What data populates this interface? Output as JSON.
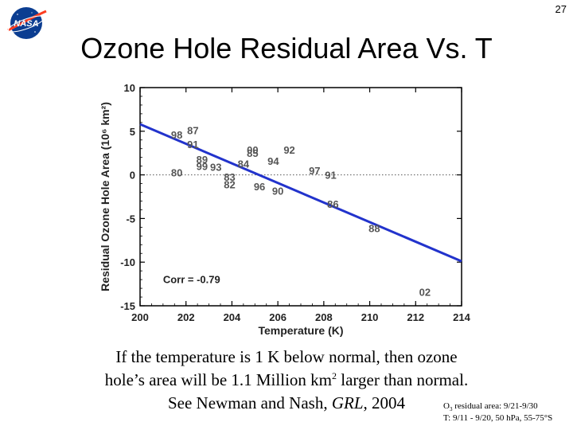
{
  "slide": {
    "number": "27",
    "logo_text": "NASA",
    "title": "Ozone Hole Residual Area Vs. T",
    "caption": {
      "line1": "If the temperature is 1 K below normal, then ozone",
      "line2_pre": "hole’s area will be 1.1 Million km",
      "line2_sup": "2",
      "line2_post": " larger than normal.",
      "line3_pre": "See Newman and Nash, ",
      "line3_italic": "GRL",
      "line3_post": ", 2004"
    },
    "note": {
      "line1_pre": "O",
      "line1_sub": "3",
      "line1_post": " residual area: 9/21-9/30",
      "line2": "T: 9/11 - 9/20, 50 hPa, 55-75°S"
    }
  },
  "colors": {
    "fit_line": "#2233cc",
    "points": "#555555",
    "axis": "#000000"
  },
  "chart_data": {
    "type": "scatter",
    "xlabel": "Temperature (K)",
    "ylabel": "Residual Ozone Hole Area (10⁶ km²)",
    "xlim": [
      200,
      214
    ],
    "ylim": [
      -15,
      10
    ],
    "xticks": [
      200,
      202,
      204,
      206,
      208,
      210,
      212,
      214
    ],
    "yticks": [
      10,
      5,
      0,
      -5,
      -10,
      -15
    ],
    "zero_line": "dotted",
    "annotation": "Corr = -0.79",
    "fit_line": {
      "x": [
        200,
        214
      ],
      "y": [
        5.8,
        -9.9
      ]
    },
    "points": [
      {
        "label": "98",
        "x": 201.6,
        "y": 4.6
      },
      {
        "label": "87",
        "x": 202.3,
        "y": 5.1
      },
      {
        "label": "91",
        "x": 202.3,
        "y": 3.5
      },
      {
        "label": "89",
        "x": 202.7,
        "y": 1.8
      },
      {
        "label": "99",
        "x": 202.7,
        "y": 1.0
      },
      {
        "label": "93",
        "x": 203.3,
        "y": 0.9
      },
      {
        "label": "80",
        "x": 201.6,
        "y": 0.3
      },
      {
        "label": "00",
        "x": 204.9,
        "y": 2.9
      },
      {
        "label": "85",
        "x": 204.9,
        "y": 2.5
      },
      {
        "label": "92",
        "x": 206.5,
        "y": 2.9
      },
      {
        "label": "94",
        "x": 205.8,
        "y": 1.6
      },
      {
        "label": "84",
        "x": 204.5,
        "y": 1.3
      },
      {
        "label": "83",
        "x": 203.9,
        "y": -0.2
      },
      {
        "label": "82",
        "x": 203.9,
        "y": -1.1
      },
      {
        "label": "96",
        "x": 205.2,
        "y": -1.3
      },
      {
        "label": "90",
        "x": 206.0,
        "y": -1.8
      },
      {
        "label": "97",
        "x": 207.6,
        "y": 0.5
      },
      {
        "label": "91",
        "x": 208.3,
        "y": 0.0
      },
      {
        "label": "86",
        "x": 208.4,
        "y": -3.3
      },
      {
        "label": "88",
        "x": 210.2,
        "y": -6.1
      },
      {
        "label": "02",
        "x": 212.4,
        "y": -13.4
      }
    ]
  }
}
